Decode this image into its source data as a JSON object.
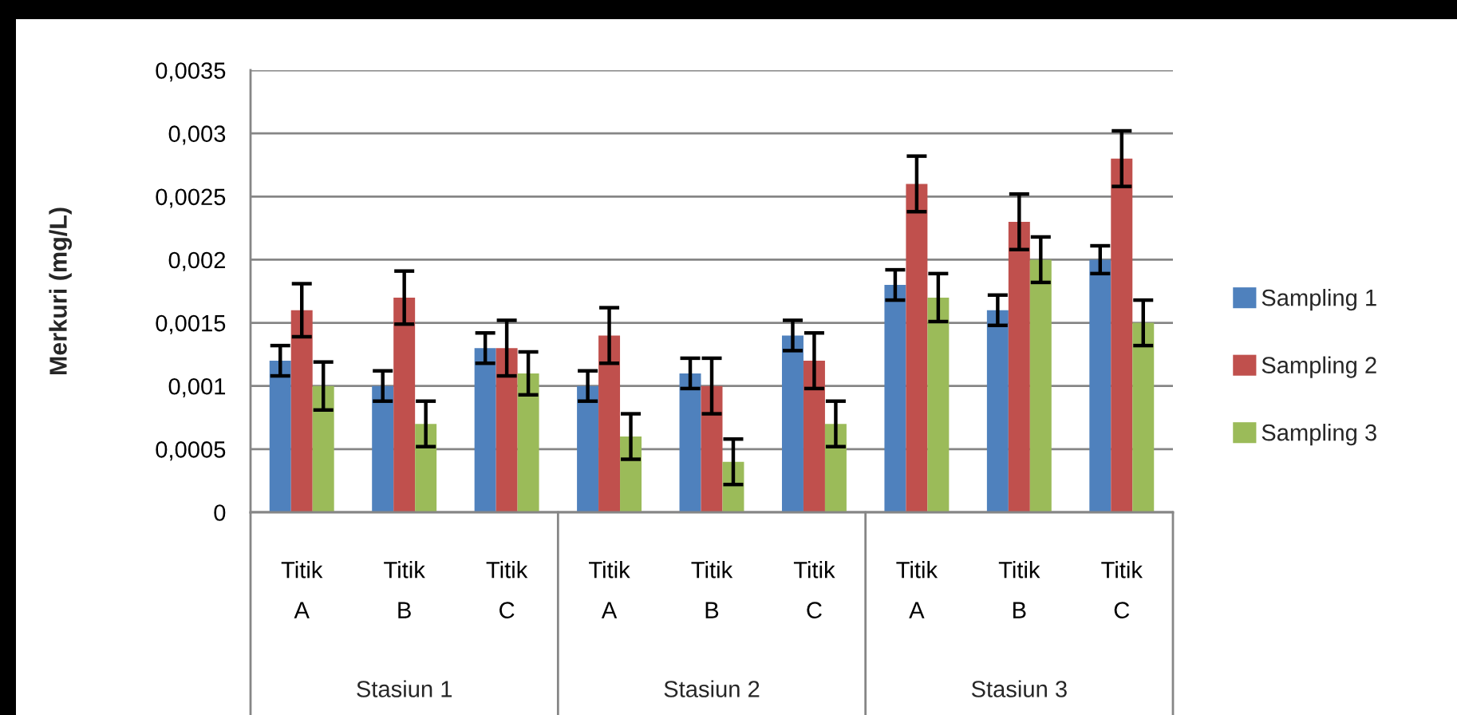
{
  "chart_data": {
    "type": "bar",
    "categories": [
      "Titik A",
      "Titik B",
      "Titik C",
      "Titik A",
      "Titik B",
      "Titik C",
      "Titik A",
      "Titik B",
      "Titik C"
    ],
    "series": [
      {
        "name": "Sampling 1",
        "color": "#4f81bd",
        "values": [
          0.0012,
          0.001,
          0.0013,
          0.001,
          0.0011,
          0.0014,
          0.0018,
          0.0016,
          0.002
        ],
        "errors": [
          0.00012,
          0.00012,
          0.00012,
          0.00012,
          0.00012,
          0.00012,
          0.00012,
          0.00012,
          0.00011
        ]
      },
      {
        "name": "Sampling 2",
        "color": "#c0504d",
        "values": [
          0.0016,
          0.0017,
          0.0013,
          0.0014,
          0.001,
          0.0012,
          0.0026,
          0.0023,
          0.0028
        ],
        "errors": [
          0.00021,
          0.00021,
          0.00022,
          0.00022,
          0.00022,
          0.00022,
          0.00022,
          0.00022,
          0.00022
        ]
      },
      {
        "name": "Sampling 3",
        "color": "#9bbb59",
        "values": [
          0.001,
          0.0007,
          0.0011,
          0.0006,
          0.0004,
          0.0007,
          0.0017,
          0.002,
          0.0015
        ],
        "errors": [
          0.00019,
          0.00018,
          0.00017,
          0.00018,
          0.00018,
          0.00018,
          0.00019,
          0.00018,
          0.00018
        ]
      }
    ],
    "ylabel": "Merkuri (mg/L)",
    "ylim": [
      0,
      0.0035
    ],
    "yticks": [
      0,
      {
        "value": 0.0005,
        "label": "0,0005"
      },
      {
        "value": 0.001,
        "label": "0,001"
      },
      {
        "value": 0.0015,
        "label": "0,0015"
      },
      {
        "value": 0.002,
        "label": "0,002"
      },
      {
        "value": 0.0025,
        "label": "0,0025"
      },
      {
        "value": 0.003,
        "label": "0,003"
      },
      {
        "value": 0.0035,
        "label": "0,0035"
      }
    ],
    "grid": "y",
    "legend": "right",
    "annotations": [
      "Stasiun 1",
      "Stasiun 2",
      "Stasiun 3"
    ]
  }
}
